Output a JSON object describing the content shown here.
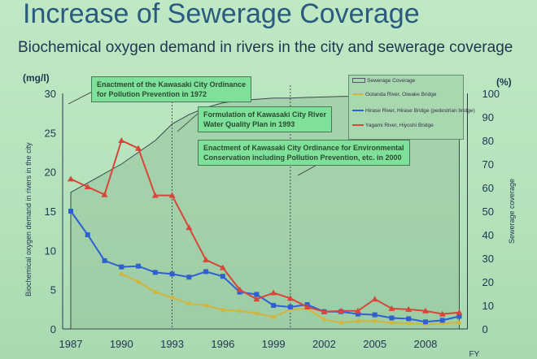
{
  "title": "Increase of Sewerage Coverage",
  "subtitle": "Biochemical oxygen demand in rivers in the city and sewerage coverage",
  "annotations": [
    {
      "text_1": "Enactment of the Kawasaki City Ordinance",
      "text_2": "for  Pollution Prevention in 1972",
      "year": 1972
    },
    {
      "text_1": "Formulation of Kawasaki City River",
      "text_2": "Water Quality Plan in 1993",
      "year": 1993
    },
    {
      "text_1": "Enactment of Kawasaki City Ordinance for Environmental",
      "text_2": "Conservation including Pollution Prevention, etc. in 2000",
      "year": 2000
    }
  ],
  "chart_data": {
    "type": "line",
    "title": "Biochemical oxygen demand in rivers in the city and sewerage coverage",
    "xlabel": "FY",
    "ylabel": "Biochemical oxygen demand in rivers in the city",
    "ylabel_unit": "(mg/l)",
    "y2label": "Sewerage coverage",
    "y2label_unit": "(%)",
    "xlim": [
      1987,
      2010
    ],
    "ylim": [
      0,
      30
    ],
    "y2lim": [
      0,
      100
    ],
    "xticks": [
      "1987",
      "1990",
      "1993",
      "1996",
      "1999",
      "2002",
      "2005",
      "2008"
    ],
    "yticks": [
      "0",
      "5",
      "10",
      "15",
      "20",
      "25",
      "30"
    ],
    "y2ticks": [
      "0",
      "10",
      "20",
      "30",
      "40",
      "50",
      "60",
      "70",
      "80",
      "90",
      "100"
    ],
    "legend_position": "top-right",
    "x": [
      1987,
      1988,
      1989,
      1990,
      1991,
      1992,
      1993,
      1994,
      1995,
      1996,
      1997,
      1998,
      1999,
      2000,
      2001,
      2002,
      2003,
      2004,
      2005,
      2006,
      2007,
      2008,
      2009,
      2010
    ],
    "series": [
      {
        "name": "Sewerage Coverage",
        "axis": "right",
        "type": "area",
        "color": "#8fbf9a",
        "values": [
          58,
          62,
          66,
          70,
          75,
          80,
          87,
          91,
          94,
          96,
          97,
          97.5,
          98,
          98,
          98.3,
          98.5,
          98.7,
          98.8,
          99,
          99,
          99.1,
          99.2,
          99.3,
          99.4
        ]
      },
      {
        "name": "Gotanda River, Oiwake Bridge",
        "axis": "left",
        "color": "#d4b43a",
        "values": [
          null,
          null,
          null,
          7,
          6,
          4.7,
          4,
          3.2,
          3,
          2.4,
          2.3,
          2,
          1.5,
          2.5,
          2.6,
          1.2,
          0.8,
          1,
          1,
          0.8,
          0.7,
          0.6,
          0.7,
          0.8
        ]
      },
      {
        "name": "Hirase River, Hirase Bridge (pedestrian bridge)",
        "axis": "left",
        "color": "#2f5fd0",
        "values": [
          15,
          12,
          8.7,
          7.9,
          8,
          7.2,
          7,
          6.6,
          7.3,
          6.7,
          4.7,
          4.4,
          3,
          2.8,
          3.1,
          2.2,
          2.2,
          1.9,
          1.8,
          1.4,
          1.3,
          0.9,
          1.1,
          1.6
        ]
      },
      {
        "name": "Yagami River, Hiyoshi Bridge",
        "axis": "left",
        "color": "#d8463a",
        "values": [
          19.1,
          18.1,
          17.1,
          24,
          23,
          17,
          17,
          12.9,
          8.8,
          7.8,
          5,
          3.8,
          4.6,
          3.9,
          2.8,
          2.2,
          2.3,
          2.3,
          3.8,
          2.6,
          2.5,
          2.3,
          1.9,
          2.1
        ]
      }
    ]
  }
}
